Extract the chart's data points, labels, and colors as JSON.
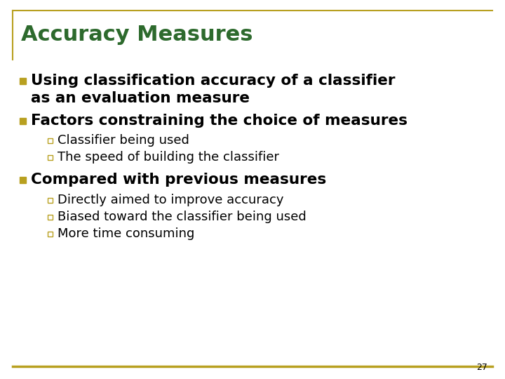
{
  "title": "Accuracy Measures",
  "title_color": "#2D6A2D",
  "title_fontsize": 22,
  "background_color": "#FFFFFF",
  "border_color": "#B8A020",
  "slide_number": "27",
  "bullet_color": "#B8A020",
  "sub_bullet_color": "#B8A020",
  "text_color": "#000000",
  "bullet1_line1": "Using classification accuracy of a classifier",
  "bullet1_line2": "as an evaluation measure",
  "bullet2": "Factors constraining the choice of measures",
  "sub_bullet2_1": "Classifier being used",
  "sub_bullet2_2": "The speed of building the classifier",
  "bullet3": "Compared with previous measures",
  "sub_bullet3_1": "Directly aimed to improve accuracy",
  "sub_bullet3_2": "Biased toward the classifier being used",
  "sub_bullet3_3": "More time consuming",
  "main_fontsize": 15.5,
  "sub_fontsize": 13,
  "slide_num_fontsize": 9
}
